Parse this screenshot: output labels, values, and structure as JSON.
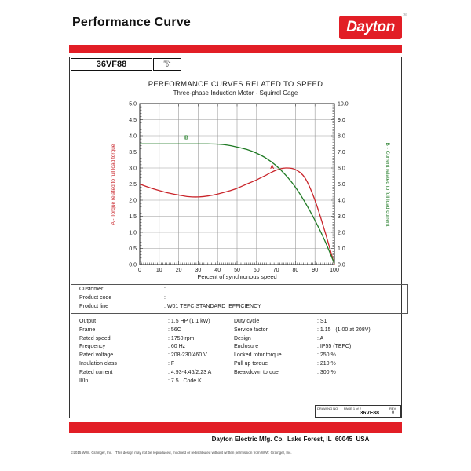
{
  "page": {
    "accent_color": "#E21E26",
    "header": {
      "title": "Performance Curve",
      "logo_text": "Dayton",
      "logo_reg": "®"
    },
    "model_box": {
      "model": "36VF88",
      "rev_label": "REV.",
      "rev_value": "0"
    },
    "footer": {
      "drawing_box": {
        "drawing_no_label": "DRAWING NO.",
        "page_label": "PAGE 1 of 2",
        "drawing_no": "36VF88",
        "rev_label": "REV.",
        "rev_value": "0"
      },
      "company_line": "Dayton Electric Mfg. Co.  Lake Forest, IL  60045  USA",
      "copyright": "©2015 W.W. Grainger, Inc.   This design may not be reproduced, modified or redistributed without written permission from W.W. Grainger, Inc."
    }
  },
  "customer_table": {
    "rows": [
      {
        "label": "Customer",
        "value": ""
      },
      {
        "label": "Product code",
        "value": ""
      },
      {
        "label": "Product line",
        "value": "W01 TEFC STANDARD  EFFICIENCY"
      }
    ]
  },
  "spec_table": {
    "left_rows": [
      [
        "Output",
        "1.5 HP (1.1 kW)"
      ],
      [
        "Frame",
        "56C"
      ],
      [
        "Rated speed",
        "1750 rpm"
      ],
      [
        "Frequency",
        "60 Hz"
      ],
      [
        "Rated voltage",
        "208-230/460 V"
      ],
      [
        "Insulation class",
        "F"
      ],
      [
        "Rated current",
        "4.93-4.46/2.23 A"
      ],
      [
        "Il/In",
        "7.5   Code K"
      ]
    ],
    "right_rows": [
      [
        "Duty cycle",
        "S1"
      ],
      [
        "Service factor",
        "1.15   (1.00 at 208V)"
      ],
      [
        "Design",
        "A"
      ],
      [
        "Enclosure",
        "IP55 (TEFC)"
      ],
      [
        "Locked rotor torque",
        "250 %"
      ],
      [
        "Pull up torque",
        "210 %"
      ],
      [
        "Breakdown torque",
        "300 %"
      ]
    ]
  },
  "chart_data": {
    "type": "line",
    "title": "PERFORMANCE CURVES RELATED TO SPEED",
    "subtitle": "Three-phase Induction Motor - Squirrel Cage",
    "xlabel": "Percent of synchronous speed",
    "x_range": [
      0,
      100
    ],
    "x_ticks": [
      0,
      10,
      20,
      30,
      40,
      50,
      60,
      70,
      80,
      90,
      100
    ],
    "grid": true,
    "left_axis": {
      "label": "A - Torque related to full load torque",
      "range": [
        0,
        5
      ],
      "step": 0.5,
      "color": "#C9252B"
    },
    "right_axis": {
      "label": "B - Current related to full load current",
      "range": [
        0,
        10
      ],
      "step": 1,
      "color": "#1F7A24"
    },
    "series": [
      {
        "name": "A",
        "desc": "Torque related to full load torque",
        "axis": "left",
        "color": "#C9252B",
        "x": [
          0,
          5,
          10,
          15,
          20,
          25,
          30,
          35,
          40,
          45,
          50,
          55,
          60,
          65,
          70,
          75,
          80,
          85,
          90,
          95,
          100
        ],
        "y": [
          2.5,
          2.39,
          2.3,
          2.22,
          2.16,
          2.11,
          2.1,
          2.13,
          2.19,
          2.27,
          2.37,
          2.5,
          2.63,
          2.78,
          2.93,
          3.0,
          2.95,
          2.68,
          2.0,
          1.05,
          0.0
        ],
        "label": {
          "text": "A",
          "x": 68,
          "y": 2.98
        }
      },
      {
        "name": "B",
        "desc": "Current related to full load current",
        "axis": "right",
        "color": "#1F7A24",
        "x": [
          0,
          5,
          10,
          15,
          20,
          25,
          30,
          35,
          40,
          45,
          50,
          55,
          60,
          65,
          70,
          75,
          80,
          85,
          90,
          95,
          100
        ],
        "y": [
          7.5,
          7.5,
          7.5,
          7.5,
          7.5,
          7.5,
          7.5,
          7.5,
          7.48,
          7.42,
          7.3,
          7.15,
          6.92,
          6.6,
          6.15,
          5.55,
          4.8,
          3.85,
          2.75,
          1.5,
          0.05
        ],
        "label": {
          "text": "B",
          "x": 24,
          "y": 7.78
        }
      }
    ]
  }
}
